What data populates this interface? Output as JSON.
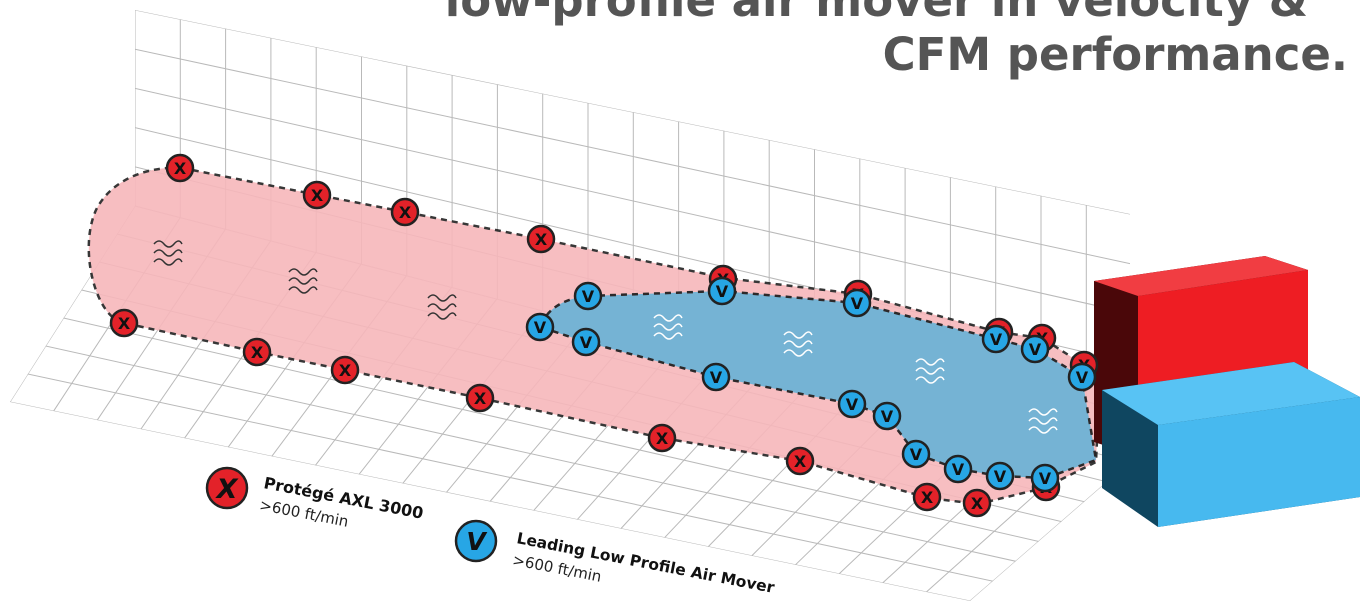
{
  "headline": {
    "line1": "low-profile air mover in velocity &",
    "line2": "CFM performance."
  },
  "marker_glyphs": {
    "protege": "X",
    "leading": "V"
  },
  "colors": {
    "grid_line": "#b9b9b9",
    "protege_fill": "#f7b7bb",
    "protege_marker": "#e32229",
    "leading_fill": "#6fb3d6",
    "leading_marker": "#27a6e5",
    "outline": "#222222",
    "red_box_front": "#ee1d23",
    "red_box_side": "#4a0709",
    "blue_box_front": "#47b9ef",
    "blue_box_side": "#0f4660",
    "headline": "#555555"
  },
  "legend": [
    {
      "key": "protege",
      "title": "Protégé AXL 3000",
      "subtitle": ">600 ft/min"
    },
    {
      "key": "leading",
      "title": "Leading Low Profile Air Mover",
      "subtitle": ">600 ft/min"
    }
  ]
}
